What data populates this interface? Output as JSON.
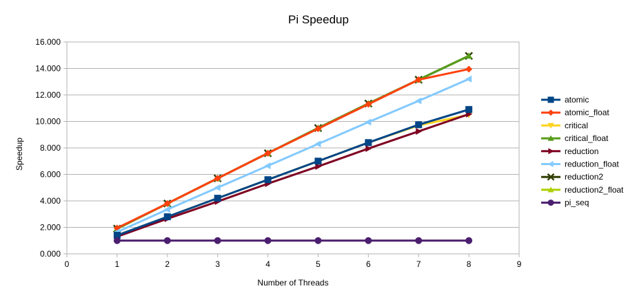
{
  "chart_data": {
    "type": "line",
    "title": "Pi Speedup",
    "xlabel": "Number of Threads",
    "ylabel": "Speedup",
    "xlim": [
      0,
      9
    ],
    "ylim": [
      0,
      16
    ],
    "x_ticks": [
      "0",
      "1",
      "2",
      "3",
      "4",
      "5",
      "6",
      "7",
      "8",
      "9"
    ],
    "y_ticks": [
      "0.000",
      "2.000",
      "4.000",
      "6.000",
      "8.000",
      "10.000",
      "12.000",
      "14.000",
      "16.000"
    ],
    "grid": true,
    "legend_position": "right",
    "x": [
      1,
      2,
      3,
      4,
      5,
      6,
      7,
      8
    ],
    "series": [
      {
        "name": "atomic",
        "color": "#004586",
        "marker": "square",
        "values": [
          1.4,
          2.8,
          4.2,
          5.6,
          7.0,
          8.4,
          9.75,
          10.9
        ]
      },
      {
        "name": "atomic_float",
        "color": "#ff420e",
        "marker": "diamond",
        "values": [
          1.95,
          3.8,
          5.7,
          7.6,
          9.45,
          11.3,
          13.15,
          13.95
        ]
      },
      {
        "name": "critical",
        "color": "#ffd320",
        "marker": "triangle-down",
        "values": [
          1.4,
          2.8,
          4.2,
          5.6,
          7.0,
          8.4,
          9.7,
          10.5
        ]
      },
      {
        "name": "critical_float",
        "color": "#579d1c",
        "marker": "triangle-up",
        "values": [
          1.9,
          3.8,
          5.7,
          7.6,
          9.5,
          11.35,
          13.15,
          14.95
        ]
      },
      {
        "name": "reduction",
        "color": "#7e0021",
        "marker": "triangle-right",
        "values": [
          1.3,
          2.65,
          3.95,
          5.3,
          6.6,
          7.95,
          9.25,
          10.55
        ]
      },
      {
        "name": "reduction_float",
        "color": "#83caff",
        "marker": "triangle-left",
        "values": [
          1.65,
          3.35,
          5.0,
          6.65,
          8.3,
          9.95,
          11.55,
          13.2
        ]
      },
      {
        "name": "reduction2",
        "color": "#314004",
        "marker": "cross",
        "values": [
          1.9,
          3.8,
          5.7,
          7.6,
          9.5,
          11.35,
          13.15,
          14.95
        ]
      },
      {
        "name": "reduction2_float",
        "color": "#aecf00",
        "marker": "triangle-up",
        "values": [
          1.9,
          3.8,
          5.7,
          7.6,
          9.5,
          11.35,
          13.15,
          14.95
        ]
      },
      {
        "name": "pi_seq",
        "color": "#4b1f6f",
        "marker": "circle",
        "values": [
          1.0,
          1.0,
          1.0,
          1.0,
          1.0,
          1.0,
          1.0,
          1.0
        ]
      }
    ],
    "draw_order": [
      2,
      7,
      6,
      3,
      1,
      5,
      4,
      0,
      8
    ]
  }
}
